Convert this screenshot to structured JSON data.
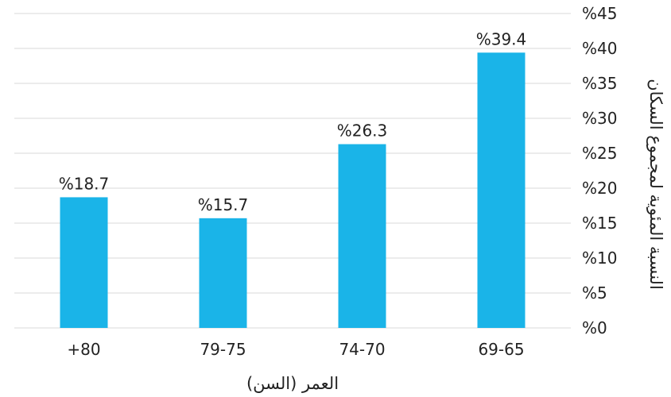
{
  "chart_data": {
    "type": "bar",
    "categories": [
      "+80",
      "79-75",
      "74-70",
      "69-65"
    ],
    "values": [
      18.7,
      15.7,
      26.3,
      39.4
    ],
    "value_labels": [
      "%18.7",
      "%15.7",
      "%26.3",
      "%39.4"
    ],
    "title": "",
    "xlabel": "العمر (السن)",
    "ylabel": "النسبة المئوية لمجموع السكان",
    "ylim": [
      0,
      45
    ],
    "y_ticks": [
      0,
      5,
      10,
      15,
      20,
      25,
      30,
      35,
      40,
      45
    ],
    "y_tick_labels": [
      "%0",
      "%5",
      "%10",
      "%15",
      "%20",
      "%25",
      "%30",
      "%35",
      "%40",
      "%45"
    ],
    "y_axis_side": "right",
    "grid": true,
    "legend": "none",
    "bar_color": "#1ab4e8",
    "grid_color": "#d9d9d9"
  }
}
